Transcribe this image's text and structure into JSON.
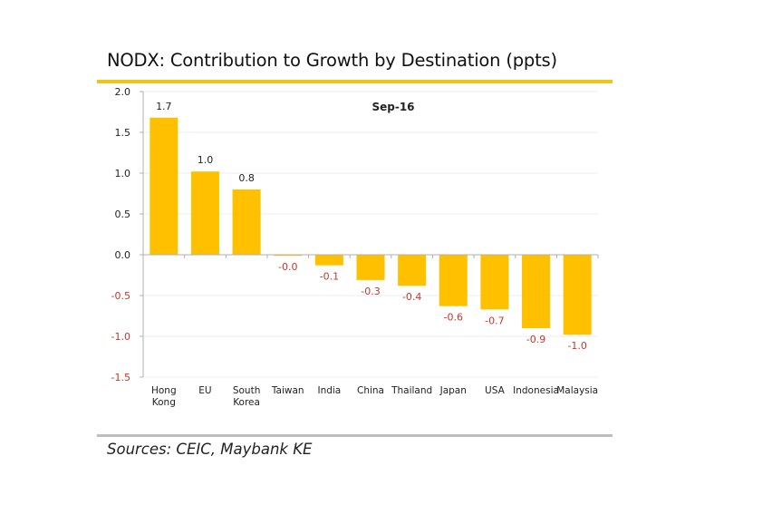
{
  "header": {
    "title": "NODX: Contribution to Growth by Destination (ppts)"
  },
  "footer": {
    "source": "Sources: CEIC, Maybank KE"
  },
  "colors": {
    "bar": "#ffc000",
    "accent_rule": "#f0c419",
    "negative_label": "#c0392b",
    "text": "#222222",
    "grid": "#ececec",
    "axis": "#b0b0b0"
  },
  "chart_data": {
    "type": "bar",
    "title": "NODX: Contribution to Growth by Destination (ppts)",
    "annotation": "Sep-16",
    "xlabel": "",
    "ylabel": "",
    "ylim": [
      -1.5,
      2.0
    ],
    "yticks": [
      2.0,
      1.5,
      1.0,
      0.5,
      0.0,
      -0.5,
      -1.0,
      -1.5
    ],
    "ytick_labels": [
      "2.0",
      "1.5",
      "1.0",
      "0.5",
      "0.0",
      "-0.5",
      "-1.0",
      "-1.5"
    ],
    "grid": true,
    "legend": "none",
    "categories": [
      [
        "Hong",
        "Kong"
      ],
      [
        "EU"
      ],
      [
        "South",
        "Korea"
      ],
      [
        "Taiwan"
      ],
      [
        "India"
      ],
      [
        "China"
      ],
      [
        "Thailand"
      ],
      [
        "Japan"
      ],
      [
        "USA"
      ],
      [
        "Indonesia"
      ],
      [
        "Malaysia"
      ]
    ],
    "values": [
      1.68,
      1.02,
      0.8,
      -0.01,
      -0.13,
      -0.31,
      -0.38,
      -0.63,
      -0.67,
      -0.9,
      -0.98
    ],
    "data_labels": [
      "1.7",
      "1.0",
      "0.8",
      "-0.0",
      "-0.1",
      "-0.3",
      "-0.4",
      "-0.6",
      "-0.7",
      "-0.9",
      "-1.0"
    ],
    "source": "Sources: CEIC, Maybank KE"
  }
}
